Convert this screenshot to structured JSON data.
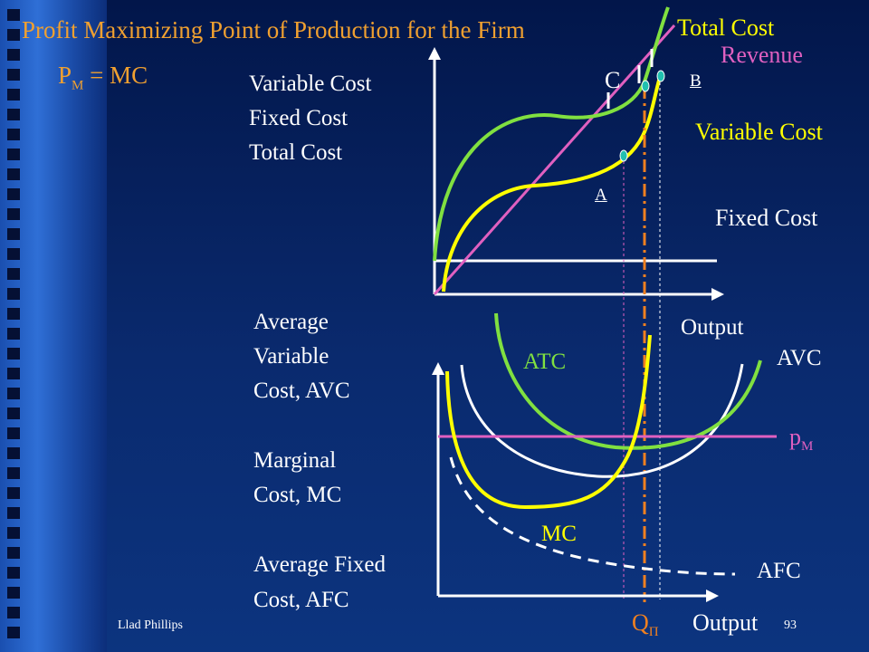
{
  "title": "Profit Maximizing Point of Production for the Firm",
  "rule": {
    "p": "P",
    "sub": "M",
    "rest": " = MC"
  },
  "top_axis_labels": [
    "Variable Cost",
    "Fixed Cost",
    "Total Cost"
  ],
  "top_curve_labels": {
    "total_cost": "Total Cost",
    "revenue": "Revenue",
    "variable_cost": "Variable Cost",
    "fixed_cost": "Fixed Cost"
  },
  "top_points": {
    "a": "A",
    "b": "B",
    "c": "C"
  },
  "top_x_label": "Output",
  "bottom_axis_labels": [
    "Average",
    "Variable",
    "Cost, AVC",
    "Marginal",
    "Cost, MC",
    "Average Fixed",
    "Cost, AFC"
  ],
  "bottom_curve_labels": {
    "atc": "ATC",
    "avc": "AVC",
    "mc": "MC",
    "afc": "AFC",
    "price": "p",
    "price_sub": "M"
  },
  "q_label": {
    "q": "Q",
    "sub": "Π"
  },
  "bottom_x_label": "Output",
  "footer": {
    "author": "Llad Phillips",
    "page": "93"
  },
  "colors": {
    "title": "#f0a030",
    "yellow_text": "#ffff00",
    "white": "#ffffff",
    "green": "#80e040",
    "pink": "#e060c0",
    "orange": "#f08020"
  }
}
